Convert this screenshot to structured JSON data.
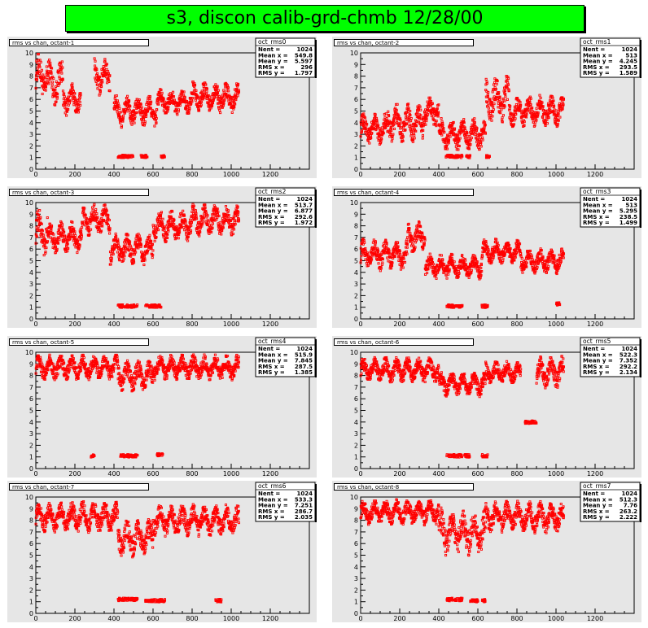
{
  "page_title": "s3, discon calib-grd-chmb 12/28/00",
  "chart_data": [
    {
      "type": "scatter",
      "title": "rms vs chan, octant-1",
      "stats_name": "oct_rms0",
      "stats": [
        [
          "Nent",
          "1024"
        ],
        [
          "Mean x",
          "549.8"
        ],
        [
          "Mean y",
          "5.597"
        ],
        [
          "RMS x",
          "296"
        ],
        [
          "RMS y",
          "1.797"
        ]
      ],
      "xlim": [
        0,
        1400
      ],
      "ylim": [
        0,
        10
      ],
      "xticks": [
        "0",
        "200",
        "400",
        "600",
        "800",
        "1000",
        "1200"
      ],
      "yticks": [
        "0",
        "1",
        "2",
        "3",
        "4",
        "5",
        "6",
        "7",
        "8",
        "9",
        "10"
      ],
      "clusters": [
        [
          0,
          60,
          8,
          1.5
        ],
        [
          60,
          140,
          7.5,
          1.5
        ],
        [
          140,
          230,
          6,
          1
        ],
        [
          300,
          380,
          8,
          1.2
        ],
        [
          400,
          620,
          5,
          1
        ],
        [
          620,
          800,
          5.8,
          0.8
        ],
        [
          800,
          1040,
          6.2,
          1
        ]
      ],
      "low": [
        [
          420,
          500,
          1.1
        ],
        [
          530,
          570,
          1.1
        ],
        [
          640,
          660,
          1.1
        ]
      ],
      "color": "#ff0000"
    },
    {
      "type": "scatter",
      "title": "rms vs chan, octant-2",
      "stats_name": "oct_rms1",
      "stats": [
        [
          "Nent",
          "1024"
        ],
        [
          "Mean x",
          "513"
        ],
        [
          "Mean y",
          "4.245"
        ],
        [
          "RMS x",
          "293.5"
        ],
        [
          "RMS y",
          "1.589"
        ]
      ],
      "xlim": [
        0,
        1400
      ],
      "ylim": [
        0,
        10
      ],
      "xticks": [
        "0",
        "200",
        "400",
        "600",
        "800",
        "1000",
        "1200"
      ],
      "yticks": [
        "0",
        "1",
        "2",
        "3",
        "4",
        "5",
        "6",
        "7",
        "8",
        "9",
        "10"
      ],
      "clusters": [
        [
          0,
          140,
          3.5,
          1
        ],
        [
          140,
          320,
          4,
          1.2
        ],
        [
          320,
          400,
          5,
          1
        ],
        [
          400,
          640,
          3,
          1
        ],
        [
          640,
          760,
          6,
          1.5
        ],
        [
          760,
          1040,
          5,
          1
        ]
      ],
      "low": [
        [
          430,
          520,
          1.1
        ],
        [
          540,
          560,
          1.1
        ],
        [
          640,
          660,
          1.1
        ]
      ],
      "color": "#ff0000"
    },
    {
      "type": "scatter",
      "title": "rms vs chan, octant-3",
      "stats_name": "oct_rms2",
      "stats": [
        [
          "Nent",
          "1024"
        ],
        [
          "Mean x",
          "513.7"
        ],
        [
          "Mean y",
          "6.877"
        ],
        [
          "RMS x",
          "292.6"
        ],
        [
          "RMS y",
          "1.972"
        ]
      ],
      "xlim": [
        0,
        1400
      ],
      "ylim": [
        0,
        10
      ],
      "xticks": [
        "0",
        "200",
        "400",
        "600",
        "800",
        "1000",
        "1200"
      ],
      "yticks": [
        "0",
        "1",
        "2",
        "3",
        "4",
        "5",
        "6",
        "7",
        "8",
        "9",
        "10"
      ],
      "clusters": [
        [
          0,
          60,
          7.5,
          1.5
        ],
        [
          60,
          240,
          7,
          1
        ],
        [
          240,
          380,
          8.5,
          1
        ],
        [
          380,
          600,
          6,
          1
        ],
        [
          600,
          800,
          8,
          1
        ],
        [
          800,
          1040,
          8.5,
          1
        ]
      ],
      "low": [
        [
          420,
          520,
          1.1
        ],
        [
          560,
          640,
          1.1
        ]
      ],
      "color": "#ff0000"
    },
    {
      "type": "scatter",
      "title": "rms vs chan, octant-4",
      "stats_name": "oct_rms3",
      "stats": [
        [
          "Nent",
          "1024"
        ],
        [
          "Mean x",
          "513"
        ],
        [
          "Mean y",
          "5.295"
        ],
        [
          "RMS x",
          "238.5"
        ],
        [
          "RMS y",
          "1.499"
        ]
      ],
      "xlim": [
        0,
        1400
      ],
      "ylim": [
        0,
        10
      ],
      "xticks": [
        "0",
        "200",
        "400",
        "600",
        "800",
        "1000",
        "1200"
      ],
      "yticks": [
        "0",
        "1",
        "2",
        "3",
        "4",
        "5",
        "6",
        "7",
        "8",
        "9",
        "10"
      ],
      "clusters": [
        [
          0,
          240,
          5.5,
          1
        ],
        [
          240,
          330,
          7,
          1
        ],
        [
          330,
          620,
          4.5,
          0.8
        ],
        [
          620,
          820,
          5.8,
          0.8
        ],
        [
          820,
          1040,
          5,
          0.8
        ]
      ],
      "low": [
        [
          440,
          520,
          1.1
        ],
        [
          620,
          650,
          1.1
        ],
        [
          1000,
          1020,
          1.3
        ]
      ],
      "color": "#ff0000"
    },
    {
      "type": "scatter",
      "title": "rms vs chan, octant-5",
      "stats_name": "oct_rms4",
      "stats": [
        [
          "Nent",
          "1024"
        ],
        [
          "Mean x",
          "515.9"
        ],
        [
          "Mean y",
          "7.845"
        ],
        [
          "RMS x",
          "287.5"
        ],
        [
          "RMS y",
          "1.385"
        ]
      ],
      "xlim": [
        0,
        1400
      ],
      "ylim": [
        0,
        10
      ],
      "xticks": [
        "0",
        "200",
        "400",
        "600",
        "800",
        "1000",
        "1200"
      ],
      "yticks": [
        "0",
        "1",
        "2",
        "3",
        "4",
        "5",
        "6",
        "7",
        "8",
        "9",
        "10"
      ],
      "clusters": [
        [
          0,
          420,
          8.7,
          0.8
        ],
        [
          420,
          600,
          8,
          1
        ],
        [
          600,
          1040,
          8.7,
          0.8
        ]
      ],
      "low": [
        [
          430,
          520,
          1.1
        ],
        [
          620,
          650,
          1.2
        ],
        [
          280,
          300,
          1.1
        ]
      ],
      "color": "#ff0000"
    },
    {
      "type": "scatter",
      "title": "rms vs chan, octant-6",
      "stats_name": "oct_rms5",
      "stats": [
        [
          "Nent",
          "1024"
        ],
        [
          "Mean x",
          "522.3"
        ],
        [
          "Mean y",
          "7.352"
        ],
        [
          "RMS x",
          "292.2"
        ],
        [
          "RMS y",
          "2.134"
        ]
      ],
      "xlim": [
        0,
        1400
      ],
      "ylim": [
        0,
        10
      ],
      "xticks": [
        "0",
        "200",
        "400",
        "600",
        "800",
        "1000",
        "1200"
      ],
      "yticks": [
        "0",
        "1",
        "2",
        "3",
        "4",
        "5",
        "6",
        "7",
        "8",
        "9",
        "10"
      ],
      "clusters": [
        [
          0,
          400,
          8.5,
          0.8
        ],
        [
          400,
          640,
          7.3,
          0.8
        ],
        [
          640,
          820,
          8.3,
          0.7
        ],
        [
          900,
          1040,
          8.3,
          1
        ]
      ],
      "low": [
        [
          440,
          520,
          1.1
        ],
        [
          530,
          560,
          1.1
        ],
        [
          620,
          650,
          1.1
        ],
        [
          840,
          900,
          4
        ]
      ],
      "color": "#ff0000"
    },
    {
      "type": "scatter",
      "title": "rms vs chan, octant-7",
      "stats_name": "oct_rms6",
      "stats": [
        [
          "Nent",
          "1024"
        ],
        [
          "Mean x",
          "533.3"
        ],
        [
          "Mean y",
          "7.251"
        ],
        [
          "RMS x",
          "286.7"
        ],
        [
          "RMS y",
          "2.035"
        ]
      ],
      "xlim": [
        0,
        1400
      ],
      "ylim": [
        0,
        10
      ],
      "xticks": [
        "0",
        "200",
        "400",
        "600",
        "800",
        "1000",
        "1200"
      ],
      "yticks": [
        "0",
        "1",
        "2",
        "3",
        "4",
        "5",
        "6",
        "7",
        "8",
        "9",
        "10"
      ],
      "clusters": [
        [
          0,
          420,
          8.3,
          1
        ],
        [
          420,
          600,
          6.5,
          1.2
        ],
        [
          600,
          1040,
          8,
          1
        ]
      ],
      "low": [
        [
          420,
          520,
          1.2
        ],
        [
          560,
          660,
          1.1
        ],
        [
          920,
          950,
          1.1
        ]
      ],
      "color": "#ff0000"
    },
    {
      "type": "scatter",
      "title": "rms vs chan, octant-8",
      "stats_name": "oct_rms7",
      "stats": [
        [
          "Nent",
          "1024"
        ],
        [
          "Mean x",
          "512.3"
        ],
        [
          "Mean y",
          "7.76"
        ],
        [
          "RMS x",
          "263.2"
        ],
        [
          "RMS y",
          "2.222"
        ]
      ],
      "xlim": [
        0,
        1400
      ],
      "ylim": [
        0,
        10
      ],
      "xticks": [
        "0",
        "200",
        "400",
        "600",
        "800",
        "1000",
        "1200"
      ],
      "yticks": [
        "0",
        "1",
        "2",
        "3",
        "4",
        "5",
        "6",
        "7",
        "8",
        "9",
        "10"
      ],
      "clusters": [
        [
          0,
          400,
          8.7,
          0.8
        ],
        [
          400,
          640,
          7,
          1.5
        ],
        [
          640,
          1040,
          8.3,
          1
        ]
      ],
      "low": [
        [
          440,
          520,
          1.2
        ],
        [
          560,
          600,
          1.1
        ],
        [
          620,
          640,
          1.1
        ]
      ],
      "color": "#ff0000"
    }
  ]
}
